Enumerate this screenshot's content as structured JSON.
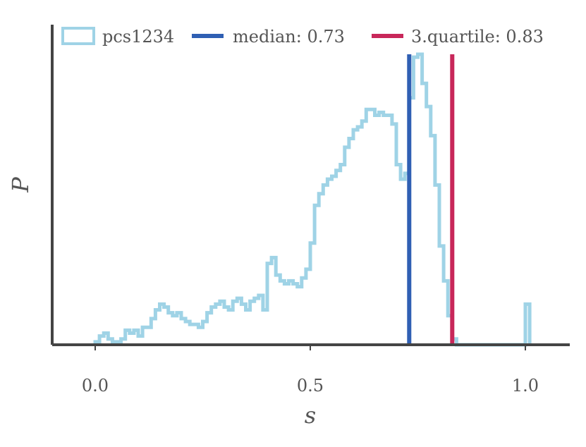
{
  "chart_data": {
    "type": "histogram",
    "xlabel": "s",
    "ylabel": "P",
    "xlim": [
      -0.1,
      1.1
    ],
    "ylim": [
      0,
      1.0
    ],
    "xticks": [
      0.0,
      0.5,
      1.0
    ],
    "xtick_labels": [
      "0.0",
      "0.5",
      "1.0"
    ],
    "yticks_visible": false,
    "grid": false,
    "legend_position": "top",
    "colors": {
      "histogram": "#9fd3e6",
      "median": "#2f5fb3",
      "quartile": "#c8275a",
      "axis": "#444444",
      "text": "#555555"
    },
    "series": [
      {
        "name": "pcs1234",
        "kind": "step",
        "bin_edges": [
          0.0,
          0.01,
          0.02,
          0.03,
          0.04,
          0.05,
          0.06,
          0.07,
          0.08,
          0.09,
          0.1,
          0.11,
          0.12,
          0.13,
          0.14,
          0.15,
          0.16,
          0.17,
          0.18,
          0.19,
          0.2,
          0.21,
          0.22,
          0.23,
          0.24,
          0.25,
          0.26,
          0.27,
          0.28,
          0.29,
          0.3,
          0.31,
          0.32,
          0.33,
          0.34,
          0.35,
          0.36,
          0.37,
          0.38,
          0.39,
          0.4,
          0.41,
          0.42,
          0.43,
          0.44,
          0.45,
          0.46,
          0.47,
          0.48,
          0.49,
          0.5,
          0.51,
          0.52,
          0.53,
          0.54,
          0.55,
          0.56,
          0.57,
          0.58,
          0.59,
          0.6,
          0.61,
          0.62,
          0.63,
          0.64,
          0.65,
          0.66,
          0.67,
          0.68,
          0.69,
          0.7,
          0.71,
          0.72,
          0.73,
          0.74,
          0.75,
          0.76,
          0.77,
          0.78,
          0.79,
          0.8,
          0.81,
          0.82,
          0.83,
          0.84,
          0.85,
          0.86,
          0.87,
          0.88,
          0.89,
          0.9,
          0.91,
          0.92,
          0.93,
          0.94,
          0.95,
          0.96,
          0.97,
          0.98,
          0.99,
          1.0,
          1.01
        ],
        "values": [
          0.01,
          0.03,
          0.04,
          0.02,
          0.01,
          0.01,
          0.02,
          0.05,
          0.04,
          0.05,
          0.03,
          0.06,
          0.06,
          0.09,
          0.12,
          0.14,
          0.13,
          0.11,
          0.1,
          0.11,
          0.09,
          0.08,
          0.07,
          0.07,
          0.06,
          0.08,
          0.11,
          0.13,
          0.14,
          0.15,
          0.13,
          0.12,
          0.15,
          0.16,
          0.14,
          0.12,
          0.15,
          0.16,
          0.17,
          0.12,
          0.28,
          0.3,
          0.24,
          0.22,
          0.21,
          0.22,
          0.21,
          0.2,
          0.23,
          0.26,
          0.35,
          0.48,
          0.52,
          0.55,
          0.57,
          0.58,
          0.6,
          0.62,
          0.68,
          0.71,
          0.74,
          0.75,
          0.77,
          0.81,
          0.81,
          0.79,
          0.8,
          0.79,
          0.79,
          0.76,
          0.62,
          0.57,
          0.59,
          0.85,
          0.99,
          1.0,
          0.9,
          0.82,
          0.72,
          0.55,
          0.34,
          0.22,
          0.1,
          0.02,
          0.0,
          0.0,
          0.0,
          0.0,
          0.0,
          0.0,
          0.0,
          0.0,
          0.0,
          0.0,
          0.0,
          0.0,
          0.0,
          0.0,
          0.0,
          0.0,
          0.14
        ]
      }
    ],
    "vlines": [
      {
        "name": "median",
        "label": "median: 0.73",
        "x": 0.73
      },
      {
        "name": "3.quartile",
        "label": "3.quartile: 0.83",
        "x": 0.83
      }
    ]
  }
}
